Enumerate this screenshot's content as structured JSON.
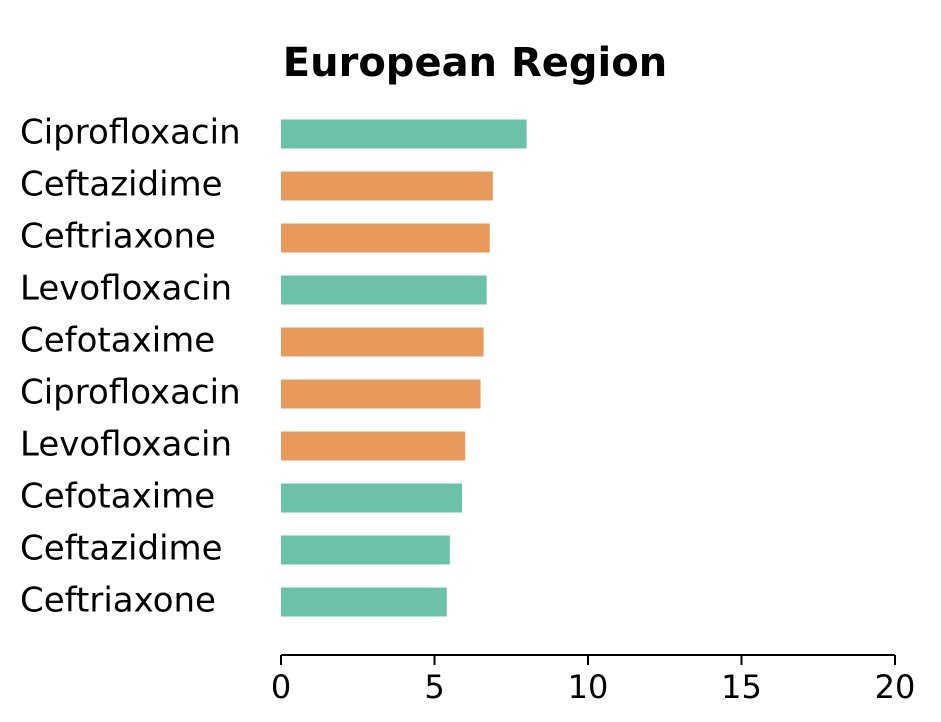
{
  "chart_data": {
    "type": "barh",
    "title": "European Region",
    "categories": [
      "Ciprofloxacin",
      "Ceftazidime",
      "Ceftriaxone",
      "Levofloxacin",
      "Cefotaxime",
      "Ciprofloxacin",
      "Levofloxacin",
      "Cefotaxime",
      "Ceftazidime",
      "Ceftriaxone"
    ],
    "values": [
      8.0,
      6.9,
      6.8,
      6.7,
      6.6,
      6.5,
      6.0,
      5.9,
      5.5,
      5.4
    ],
    "colors": [
      "#6cc2a8",
      "#e8995c",
      "#e8995c",
      "#6cc2a8",
      "#e8995c",
      "#e8995c",
      "#e8995c",
      "#6cc2a8",
      "#6cc2a8",
      "#6cc2a8"
    ],
    "xlim": [
      0,
      20
    ],
    "xticks": [
      0,
      5,
      10,
      15,
      20
    ]
  }
}
